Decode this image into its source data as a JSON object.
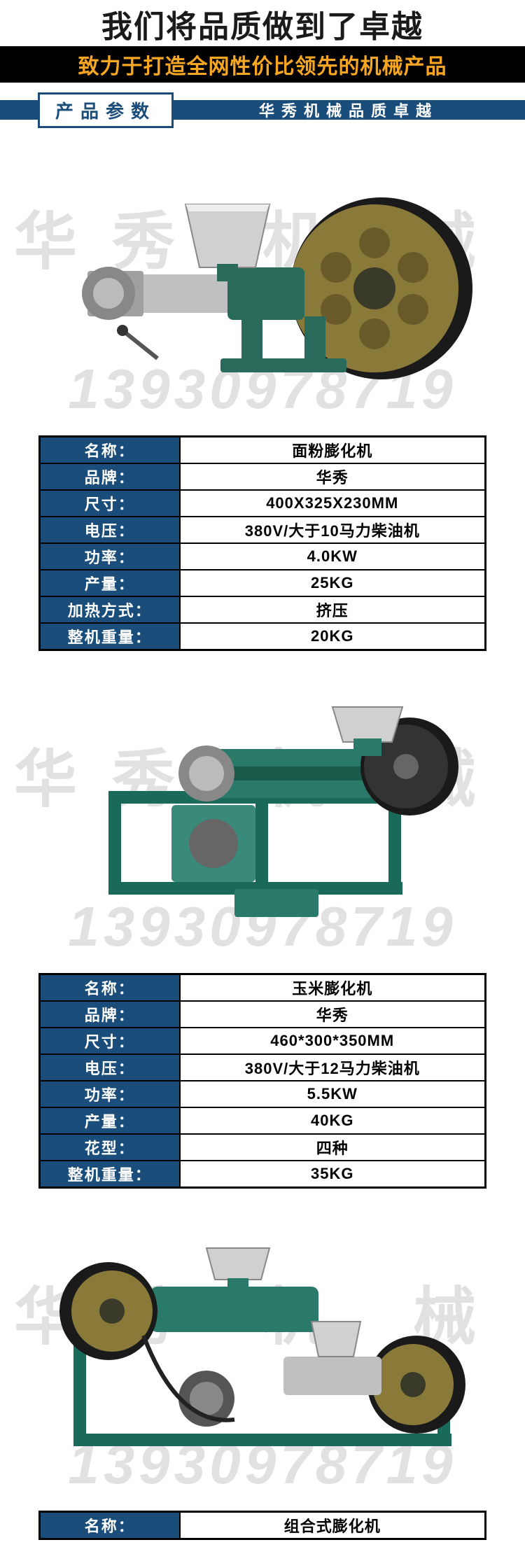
{
  "header": {
    "title": "我们将品质做到了卓越",
    "subtitle": "致力于打造全网性价比领先的机械产品"
  },
  "section": {
    "badge": "产品参数",
    "right_text": "华秀机械品质卓越"
  },
  "watermark": {
    "brand": "华秀 机 械",
    "phone": "13930978719"
  },
  "colors": {
    "header_label_bg": "#1a4d7a",
    "header_label_text": "#ffffff",
    "value_text": "#000000",
    "border": "#000000",
    "sub_bg": "#000000",
    "sub_text": "#f5a623"
  },
  "products": [
    {
      "rows": [
        {
          "label": "名称：",
          "value": "面粉膨化机"
        },
        {
          "label": "品牌：",
          "value": "华秀"
        },
        {
          "label": "尺寸：",
          "value": "400X325X230MM"
        },
        {
          "label": "电压：",
          "value": "380V/大于10马力柴油机"
        },
        {
          "label": "功率：",
          "value": "4.0KW"
        },
        {
          "label": "产量：",
          "value": "25KG"
        },
        {
          "label": "加热方式：",
          "value": "挤压"
        },
        {
          "label": "整机重量：",
          "value": "20KG"
        }
      ]
    },
    {
      "rows": [
        {
          "label": "名称：",
          "value": "玉米膨化机"
        },
        {
          "label": "品牌：",
          "value": "华秀"
        },
        {
          "label": "尺寸：",
          "value": "460*300*350MM"
        },
        {
          "label": "电压：",
          "value": "380V/大于12马力柴油机"
        },
        {
          "label": "功率：",
          "value": "5.5KW"
        },
        {
          "label": "产量：",
          "value": "40KG"
        },
        {
          "label": "花型：",
          "value": "四种"
        },
        {
          "label": "整机重量：",
          "value": "35KG"
        }
      ]
    },
    {
      "rows": [
        {
          "label": "名称：",
          "value": "组合式膨化机"
        }
      ]
    }
  ]
}
